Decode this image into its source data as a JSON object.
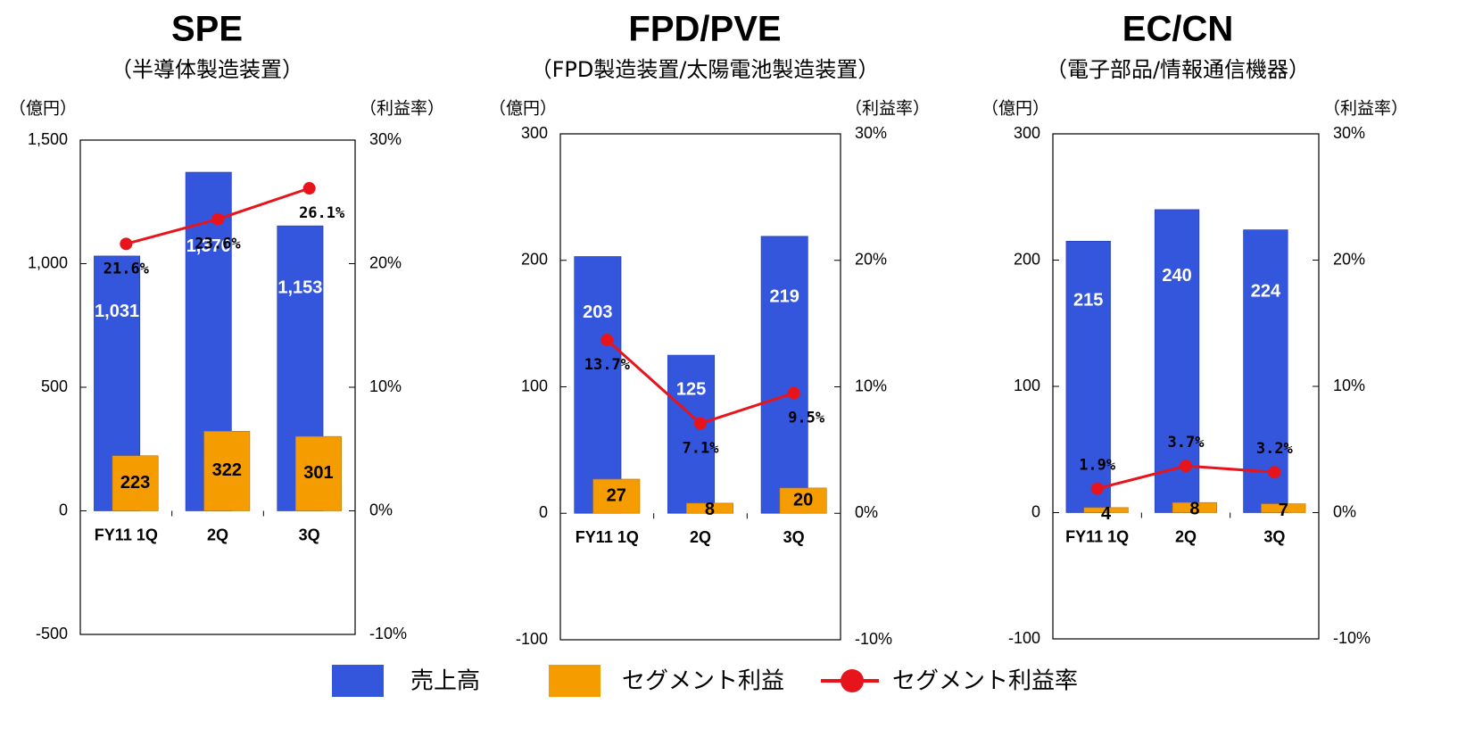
{
  "chart_data": [
    {
      "type": "bar",
      "title": "SPE",
      "subtitle": "（半導体製造装置）",
      "y_label": "（億円）",
      "y2_label": "（利益率）",
      "categories": [
        "FY11 1Q",
        "2Q",
        "3Q"
      ],
      "series": [
        {
          "type": "bar",
          "values": [
            1031,
            1370,
            1153
          ],
          "value_labels": [
            "1,031",
            "1,370",
            "1,153"
          ]
        },
        {
          "type": "bar",
          "values": [
            223,
            322,
            301
          ]
        },
        {
          "type": "line",
          "axis": "y2",
          "values": [
            21.6,
            23.6,
            26.1
          ],
          "value_labels": [
            "21.6%",
            "23.6%",
            "26.1%"
          ]
        }
      ],
      "ylim": [
        -500,
        1500
      ],
      "yticks": [
        -500,
        0,
        500,
        {
          "value": 1000,
          "label": "1,000"
        },
        {
          "value": 1500,
          "label": "1,500"
        }
      ],
      "y2lim": [
        -10,
        30
      ],
      "y2ticks": [
        {
          "value": -10,
          "label": "-10%"
        },
        {
          "value": 0,
          "label": "0%"
        },
        {
          "value": 10,
          "label": "10%"
        },
        {
          "value": 20,
          "label": "20%"
        },
        {
          "value": 30,
          "label": "30%"
        }
      ]
    },
    {
      "type": "bar",
      "title": "FPD/PVE",
      "subtitle": "（FPD製造装置/太陽電池製造装置）",
      "y_label": "（億円）",
      "y2_label": "（利益率）",
      "categories": [
        "FY11 1Q",
        "2Q",
        "3Q"
      ],
      "series": [
        {
          "type": "bar",
          "values": [
            203,
            125,
            219
          ]
        },
        {
          "type": "bar",
          "values": [
            27,
            8,
            20
          ]
        },
        {
          "type": "line",
          "axis": "y2",
          "values": [
            13.7,
            7.1,
            9.5
          ],
          "value_labels": [
            "13.7%",
            "7.1%",
            "9.5%"
          ]
        }
      ],
      "ylim": [
        -100,
        300
      ],
      "yticks": [
        -100,
        0,
        100,
        200,
        300
      ],
      "y2lim": [
        -10,
        30
      ],
      "y2ticks": [
        {
          "value": -10,
          "label": "-10%"
        },
        {
          "value": 0,
          "label": "0%"
        },
        {
          "value": 10,
          "label": "10%"
        },
        {
          "value": 20,
          "label": "20%"
        },
        {
          "value": 30,
          "label": "30%"
        }
      ]
    },
    {
      "type": "bar",
      "title": "EC/CN",
      "subtitle": "（電子部品/情報通信機器）",
      "y_label": "（億円）",
      "y2_label": "（利益率）",
      "categories": [
        "FY11  1Q",
        "2Q",
        "3Q"
      ],
      "series": [
        {
          "type": "bar",
          "values": [
            215,
            240,
            224
          ]
        },
        {
          "type": "bar",
          "values": [
            4,
            8,
            7
          ]
        },
        {
          "type": "line",
          "axis": "y2",
          "values": [
            1.9,
            3.7,
            3.2
          ],
          "value_labels": [
            "1.9%",
            "3.7%",
            "3.2%"
          ]
        }
      ],
      "ylim": [
        -100,
        300
      ],
      "yticks": [
        -100,
        0,
        100,
        200,
        300
      ],
      "y2lim": [
        -10,
        30
      ],
      "y2ticks": [
        {
          "value": -10,
          "label": "-10%"
        },
        {
          "value": 0,
          "label": "0%"
        },
        {
          "value": 10,
          "label": "10%"
        },
        {
          "value": 20,
          "label": "20%"
        },
        {
          "value": 30,
          "label": "30%"
        }
      ]
    }
  ],
  "legend": [
    {
      "name": "売上高",
      "color": "#3356dc"
    },
    {
      "name": "セグメント利益",
      "color": "#f59d00"
    },
    {
      "name": "セグメント利益率",
      "color": "#e8141c"
    }
  ]
}
